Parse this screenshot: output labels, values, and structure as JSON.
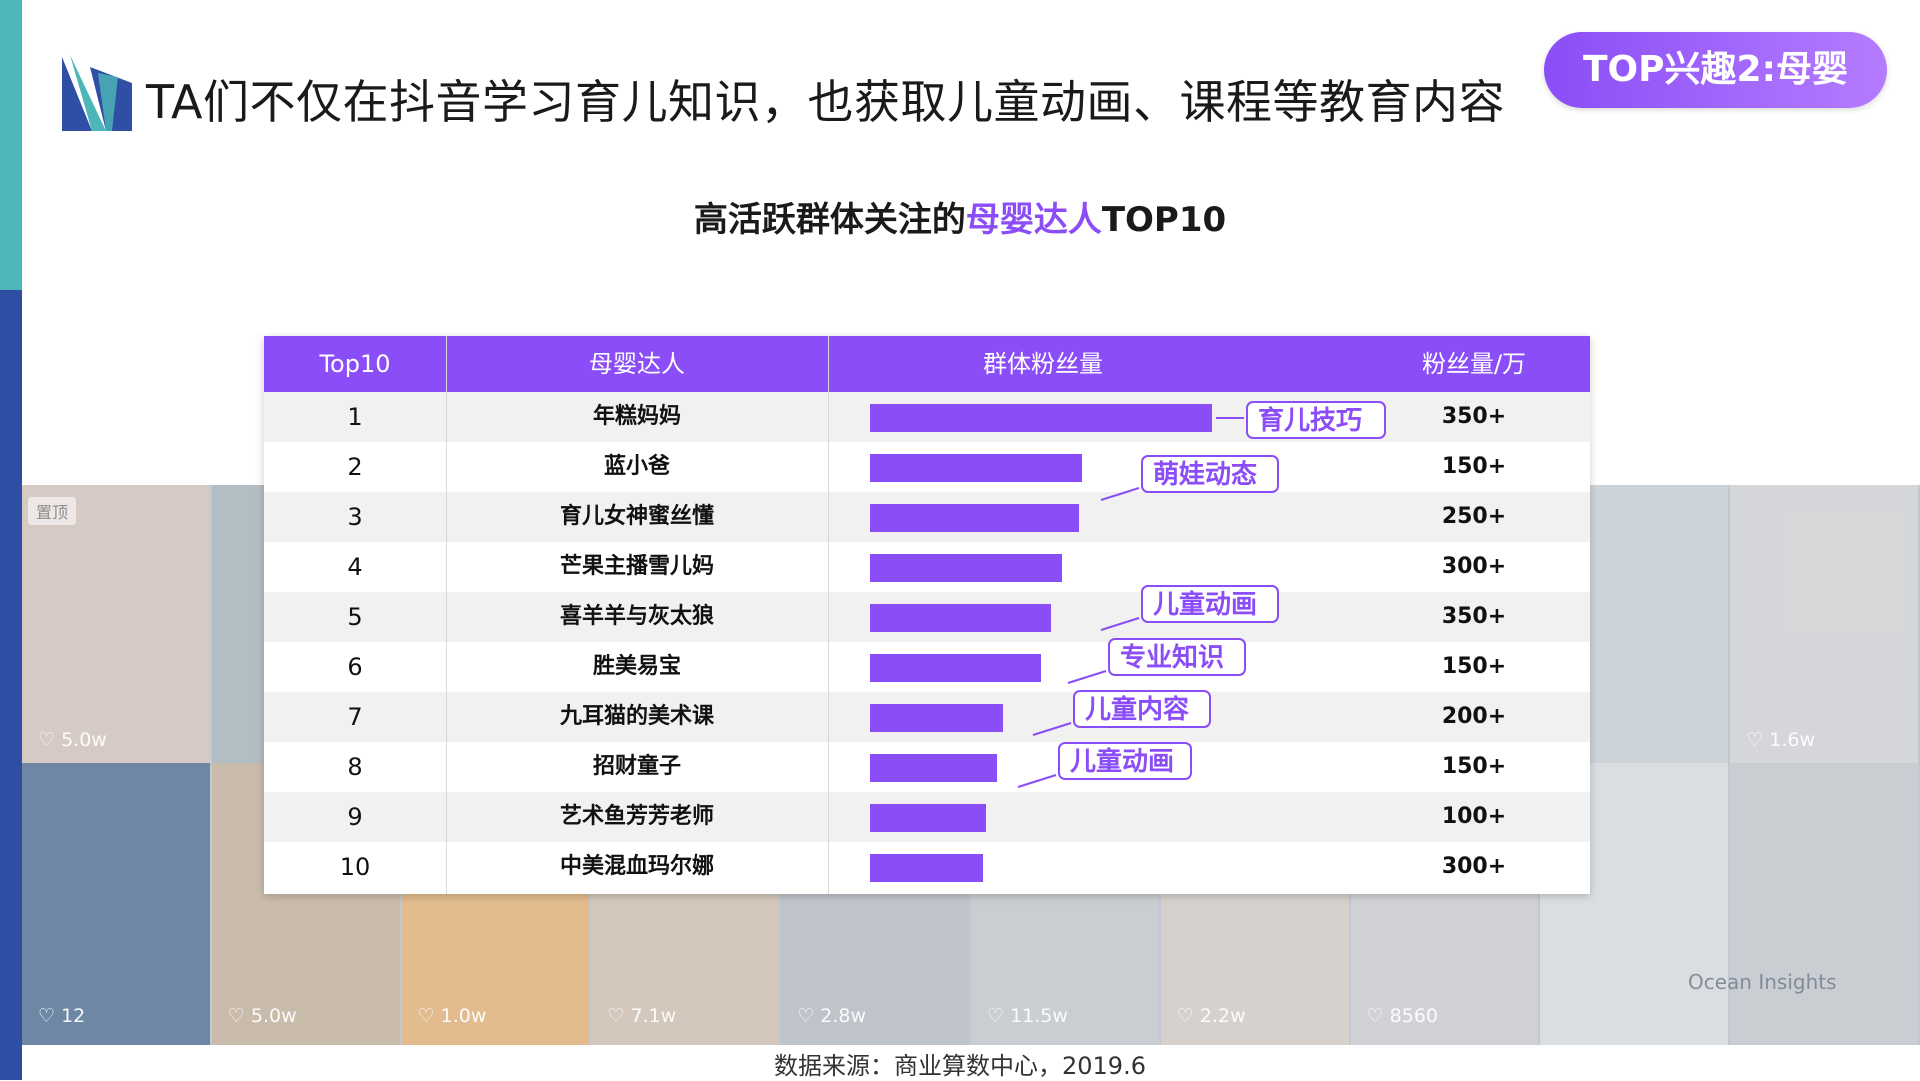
{
  "header": {
    "title": "TA们不仅在抖音学习育儿知识，也获取儿童动画、课程等教育内容",
    "pill": "TOP兴趣2:母婴"
  },
  "subtitle": {
    "prefix": "高活跃群体关注的",
    "highlight": "母婴达人",
    "suffix": "TOP10"
  },
  "source": "数据来源：商业算数中心，2019.6",
  "watermark": "Ocean Insights",
  "background": {
    "pin_label": "置顶",
    "top_likes": [
      "5.0w",
      "",
      "",
      "",
      "",
      "",
      "",
      "",
      "",
      "1.6w"
    ],
    "bottom_likes": [
      "12",
      "5.0w",
      "1.0w",
      "7.1w",
      "2.8w",
      "11.5w",
      "2.2w",
      "8560",
      "",
      ""
    ]
  },
  "colors": {
    "accent": "#8a4df7",
    "teal": "#4db6b8",
    "navy": "#2e4fa3"
  },
  "table": {
    "headers": {
      "rank": "Top10",
      "name": "母婴达人",
      "bar": "群体粉丝量",
      "fans": "粉丝量/万"
    },
    "rows": [
      {
        "rank": "1",
        "name": "年糕妈妈",
        "fans": "350+"
      },
      {
        "rank": "2",
        "name": "蓝小爸",
        "fans": "150+"
      },
      {
        "rank": "3",
        "name": "育儿女神蜜丝懂",
        "fans": "250+"
      },
      {
        "rank": "4",
        "name": "芒果主播雪儿妈",
        "fans": "300+"
      },
      {
        "rank": "5",
        "name": "喜羊羊与灰太狼",
        "fans": "350+"
      },
      {
        "rank": "6",
        "name": "胜美易宝",
        "fans": "150+"
      },
      {
        "rank": "7",
        "name": "九耳猫的美术课",
        "fans": "200+"
      },
      {
        "rank": "8",
        "name": "招财童子",
        "fans": "150+"
      },
      {
        "rank": "9",
        "name": "艺术鱼芳芳老师",
        "fans": "100+"
      },
      {
        "rank": "10",
        "name": "中美混血玛尔娜",
        "fans": "300+"
      }
    ],
    "tags": [
      {
        "row": 0,
        "label": "育儿技巧"
      },
      {
        "row": 1,
        "label": "萌娃动态"
      },
      {
        "row": 4,
        "label": "儿童动画"
      },
      {
        "row": 5,
        "label": "专业知识"
      },
      {
        "row": 6,
        "label": "儿童内容"
      },
      {
        "row": 7,
        "label": "儿童动画"
      }
    ]
  },
  "chart_data": {
    "type": "bar",
    "orientation": "horizontal",
    "title": "高活跃群体关注的母婴达人TOP10",
    "categories": [
      "年糕妈妈",
      "蓝小爸",
      "育儿女神蜜丝懂",
      "芒果主播雪儿妈",
      "喜羊羊与灰太狼",
      "胜美易宝",
      "九耳猫的美术课",
      "招财童子",
      "艺术鱼芳芳老师",
      "中美混血玛尔娜"
    ],
    "values": [
      100,
      62,
      61,
      56,
      53,
      50,
      39,
      37,
      34,
      33
    ],
    "value_unit": "relative index (unlabeled axis)",
    "xlabel": "群体粉丝量",
    "xlim": [
      0,
      100
    ],
    "grid": false,
    "legend": "none"
  }
}
